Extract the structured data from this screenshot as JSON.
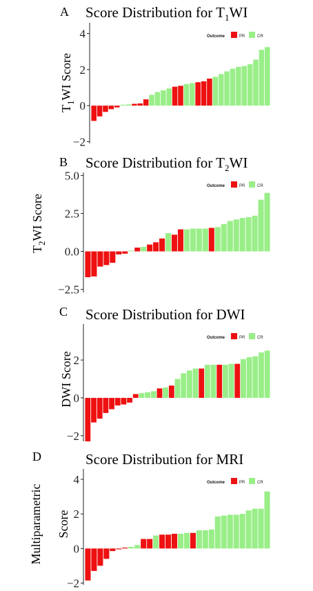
{
  "colors": {
    "PR": "#ee1111",
    "CR": "#99ee88"
  },
  "chart_data": [
    {
      "panel": "A",
      "type": "bar",
      "title": "Score Distribution for T",
      "title_sub": "1",
      "title_after": "WI",
      "ylabel_main": "T",
      "ylabel_sub": "1",
      "ylabel_after": "WI Score",
      "ylabel_line2": "",
      "ylim": [
        -2.1,
        4.6
      ],
      "yticks": [
        -2,
        0,
        2,
        4
      ],
      "ytick_labels": [
        "−2",
        "0",
        "2",
        "4"
      ],
      "legend": {
        "title": "Outcome",
        "entries": [
          "PR",
          "CR"
        ],
        "placement": "top-right"
      },
      "grid": false,
      "values": [
        -0.85,
        -0.6,
        -0.35,
        -0.2,
        -0.1,
        0.05,
        0.07,
        0.1,
        0.12,
        0.35,
        0.6,
        0.75,
        0.85,
        0.95,
        1.05,
        1.1,
        1.2,
        1.25,
        1.3,
        1.35,
        1.5,
        1.6,
        1.75,
        1.9,
        2.05,
        2.15,
        2.2,
        2.3,
        2.55,
        3.1,
        3.25
      ],
      "outcomes": [
        "PR",
        "PR",
        "PR",
        "PR",
        "PR",
        "CR",
        "CR",
        "PR",
        "PR",
        "PR",
        "CR",
        "CR",
        "CR",
        "CR",
        "PR",
        "PR",
        "CR",
        "CR",
        "PR",
        "PR",
        "PR",
        "CR",
        "CR",
        "CR",
        "CR",
        "CR",
        "CR",
        "CR",
        "CR",
        "CR",
        "CR"
      ]
    },
    {
      "panel": "B",
      "type": "bar",
      "title": "Score Distribution for T",
      "title_sub": "2",
      "title_after": "WI",
      "ylabel_main": "T",
      "ylabel_sub": "2",
      "ylabel_after": "WI Score",
      "ylabel_line2": "",
      "ylim": [
        -2.7,
        5.2
      ],
      "yticks": [
        -2.5,
        0,
        2.5,
        5
      ],
      "ytick_labels": [
        "−2.5",
        "0.0",
        "2.5",
        "5.0"
      ],
      "legend": {
        "title": "Outcome",
        "entries": [
          "PR",
          "CR"
        ],
        "placement": "top-right"
      },
      "grid": false,
      "values": [
        -1.7,
        -1.65,
        -1.0,
        -0.9,
        -0.75,
        -0.2,
        -0.15,
        0.05,
        0.25,
        0.3,
        0.45,
        0.6,
        0.85,
        1.2,
        1.1,
        1.45,
        1.45,
        1.5,
        1.5,
        1.5,
        1.55,
        1.6,
        1.8,
        2.0,
        2.1,
        2.2,
        2.25,
        2.35,
        3.4,
        3.85
      ],
      "outcomes": [
        "PR",
        "PR",
        "PR",
        "PR",
        "PR",
        "PR",
        "PR",
        "CR",
        "PR",
        "CR",
        "PR",
        "PR",
        "PR",
        "CR",
        "PR",
        "PR",
        "CR",
        "CR",
        "CR",
        "CR",
        "PR",
        "CR",
        "CR",
        "CR",
        "CR",
        "CR",
        "CR",
        "CR",
        "CR",
        "CR"
      ]
    },
    {
      "panel": "C",
      "type": "bar",
      "title": "Score Distribution for DWI",
      "title_sub": "",
      "title_after": "",
      "ylabel_main": "DWI Score",
      "ylabel_sub": "",
      "ylabel_after": "",
      "ylabel_line2": "",
      "ylim": [
        -2.3,
        3.9
      ],
      "yticks": [
        -2,
        0,
        2
      ],
      "ytick_labels": [
        "−2",
        "0",
        "2"
      ],
      "legend": {
        "title": "Outcome",
        "entries": [
          "PR",
          "CR"
        ],
        "placement": "top-right"
      },
      "grid": false,
      "values": [
        -2.3,
        -1.3,
        -1.1,
        -0.8,
        -0.6,
        -0.4,
        -0.35,
        -0.25,
        0.2,
        0.25,
        0.3,
        0.35,
        0.5,
        0.55,
        0.65,
        1.0,
        1.3,
        1.45,
        1.55,
        1.55,
        1.75,
        1.75,
        1.75,
        1.75,
        1.8,
        1.8,
        2.05,
        2.15,
        2.2,
        2.4,
        2.5
      ],
      "outcomes": [
        "PR",
        "PR",
        "PR",
        "PR",
        "PR",
        "PR",
        "PR",
        "PR",
        "PR",
        "CR",
        "CR",
        "CR",
        "PR",
        "CR",
        "PR",
        "CR",
        "CR",
        "CR",
        "CR",
        "PR",
        "CR",
        "CR",
        "PR",
        "CR",
        "CR",
        "PR",
        "CR",
        "CR",
        "CR",
        "CR",
        "CR"
      ]
    },
    {
      "panel": "D",
      "type": "bar",
      "title": "Score Distribution for MRI",
      "title_sub": "",
      "title_after": "",
      "ylabel_main": "Multiparametric",
      "ylabel_sub": "",
      "ylabel_after": "",
      "ylabel_line2": "Score",
      "ylim": [
        -2.1,
        4.6
      ],
      "yticks": [
        -2,
        0,
        2,
        4
      ],
      "ytick_labels": [
        "−2",
        "0",
        "2",
        "4"
      ],
      "legend": {
        "title": "Outcome",
        "entries": [
          "PR",
          "CR"
        ],
        "placement": "top-right"
      },
      "grid": false,
      "values": [
        -1.85,
        -1.3,
        -1.0,
        -0.6,
        -0.15,
        -0.05,
        0.05,
        0.1,
        0.2,
        0.55,
        0.55,
        0.75,
        0.8,
        0.8,
        0.85,
        0.85,
        0.9,
        0.9,
        1.05,
        1.05,
        1.1,
        1.85,
        1.9,
        1.95,
        1.95,
        2.0,
        2.2,
        2.3,
        2.3,
        3.3
      ],
      "outcomes": [
        "PR",
        "PR",
        "PR",
        "PR",
        "PR",
        "PR",
        "PR",
        "CR",
        "CR",
        "PR",
        "PR",
        "CR",
        "PR",
        "PR",
        "PR",
        "CR",
        "CR",
        "PR",
        "CR",
        "CR",
        "CR",
        "CR",
        "CR",
        "CR",
        "CR",
        "CR",
        "CR",
        "CR",
        "CR",
        "CR"
      ]
    }
  ]
}
